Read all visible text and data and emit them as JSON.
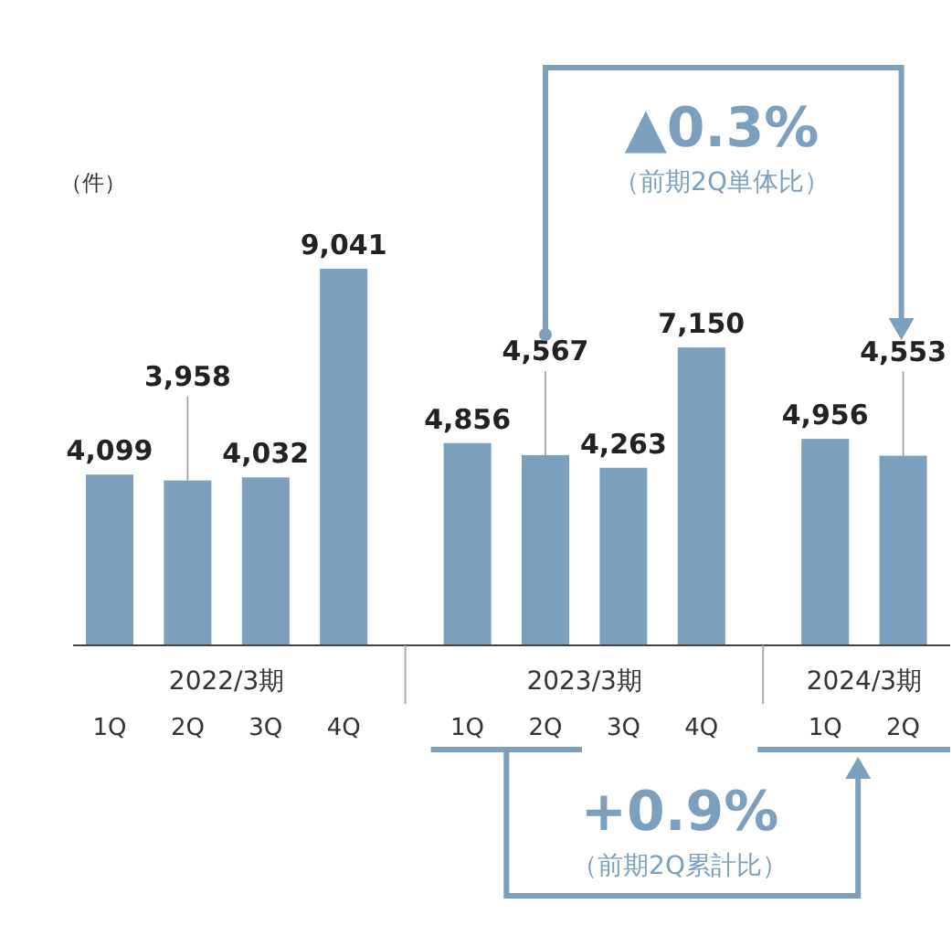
{
  "chart_data": {
    "type": "bar",
    "ylabel": "（件）",
    "categories": [
      "1Q",
      "2Q",
      "3Q",
      "4Q",
      "1Q",
      "2Q",
      "3Q",
      "4Q",
      "1Q",
      "2Q"
    ],
    "color": "#7c9fbd",
    "values": [
      4099,
      3958,
      4032,
      9041,
      4856,
      4567,
      4263,
      7150,
      4956,
      4553
    ],
    "value_labels": [
      "4,099",
      "3,958",
      "4,032",
      "9,041",
      "4,856",
      "4,567",
      "4,263",
      "7,150",
      "4,956",
      "4,553"
    ],
    "annotations": [
      "2022/3期",
      "2023/3期",
      "2024/3期",
      "▲0.3%",
      "（前期2Q単体比）",
      "+0.9%",
      "（前期2Q累計比）"
    ]
  }
}
